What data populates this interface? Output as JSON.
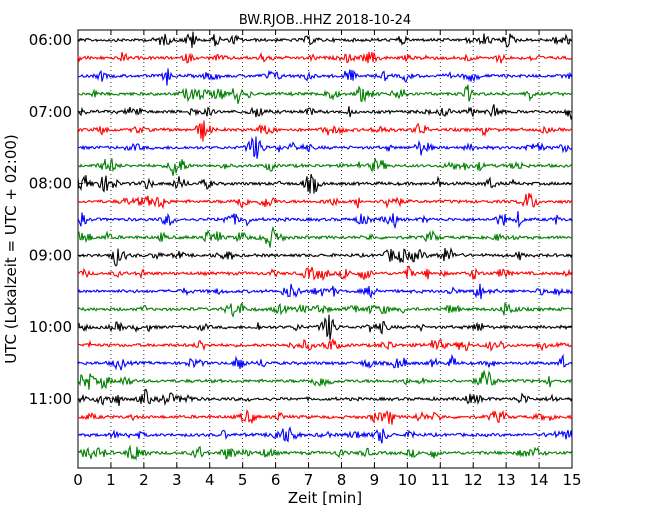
{
  "chart_data": {
    "type": "line",
    "title": "BW.RJOB..HHZ 2018-10-24",
    "xlabel": "Zeit  [min]",
    "ylabel": "UTC (Lokalzeit = UTC + 02:00)",
    "xlim": [
      0,
      15
    ],
    "x_ticks": [
      "0",
      "1",
      "2",
      "3",
      "4",
      "5",
      "6",
      "7",
      "8",
      "9",
      "10",
      "11",
      "12",
      "13",
      "14",
      "15"
    ],
    "y_ticks": [
      "06:00",
      "07:00",
      "08:00",
      "09:00",
      "10:00",
      "11:00"
    ],
    "trace_start_times": [
      "06:00",
      "06:15",
      "06:30",
      "06:45",
      "07:00",
      "07:15",
      "07:30",
      "07:45",
      "08:00",
      "08:15",
      "08:30",
      "08:45",
      "09:00",
      "09:15",
      "09:30",
      "09:45",
      "10:00",
      "10:15",
      "10:30",
      "10:45",
      "11:00",
      "11:15",
      "11:30",
      "11:45"
    ],
    "trace_colors": [
      "#000000",
      "#ff0000",
      "#0000ff",
      "#008000"
    ],
    "grid": "vertical dotted at each minute"
  }
}
